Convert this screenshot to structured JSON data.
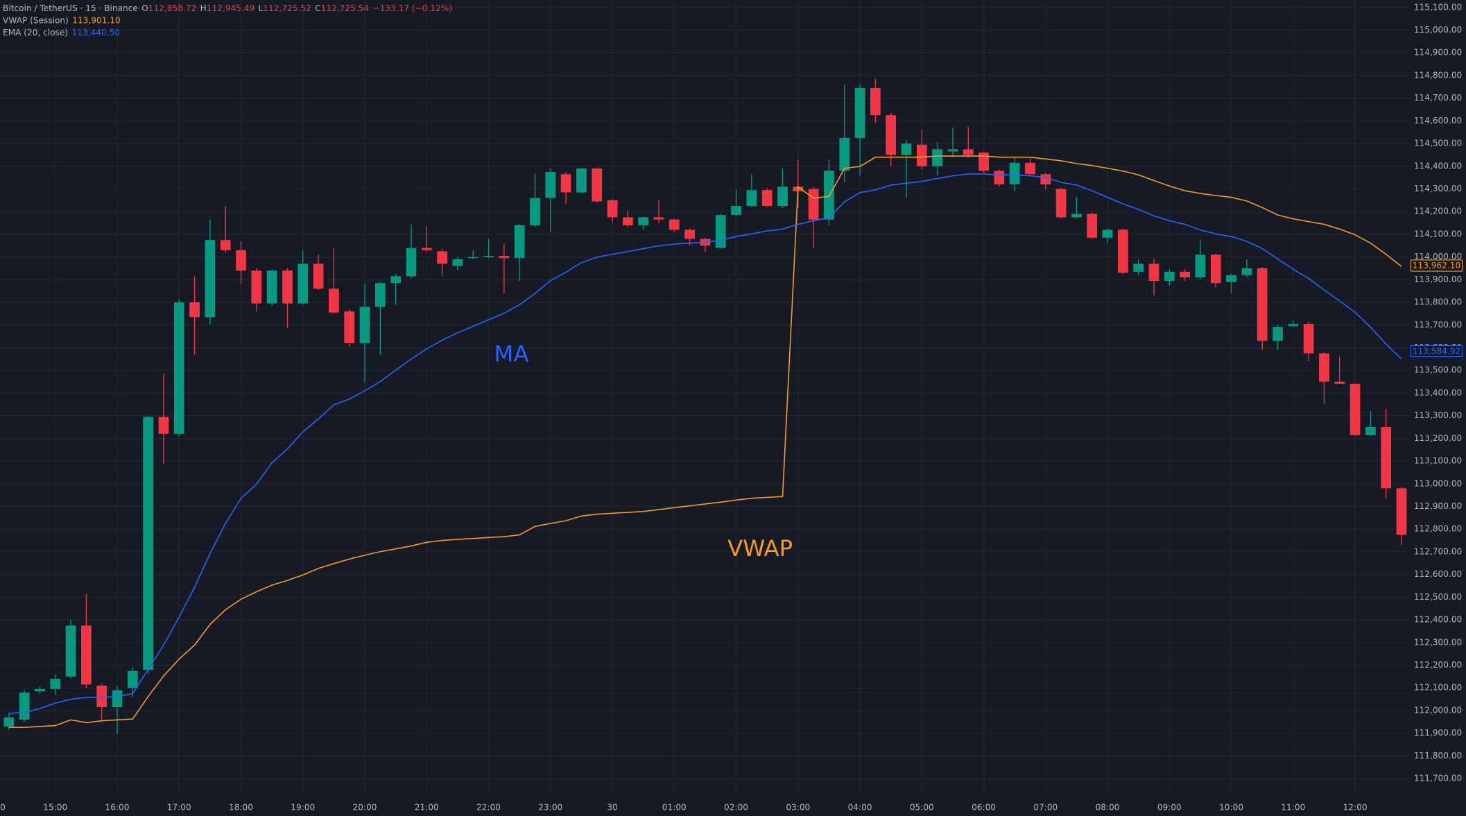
{
  "chart_data": {
    "type": "candlestick",
    "header": {
      "title": "Bitcoin / TetherUS · 15 · Binance",
      "ohlc": [
        {
          "label": "O",
          "value": "112,858.72"
        },
        {
          "label": "H",
          "value": "112,945.49"
        },
        {
          "label": "L",
          "value": "112,725.52"
        },
        {
          "label": "C",
          "value": "112,725.54"
        }
      ],
      "change": "−133.17 (−0.12%)"
    },
    "categories": [
      "0",
      null,
      null,
      null,
      "15:00",
      null,
      null,
      null,
      "16:00",
      null,
      null,
      null,
      "17:00",
      null,
      null,
      null,
      "18:00",
      null,
      null,
      null,
      "19:00",
      null,
      null,
      null,
      "20:00",
      null,
      null,
      null,
      "21:00",
      null,
      null,
      null,
      "22:00",
      null,
      null,
      null,
      "23:00",
      null,
      null,
      null,
      "30",
      null,
      null,
      null,
      "01:00",
      null,
      null,
      null,
      "02:00",
      null,
      null,
      null,
      "03:00",
      null,
      null,
      null,
      "04:00",
      null,
      null,
      null,
      "05:00",
      null,
      null,
      null,
      "06:00",
      null,
      null,
      null,
      "07:00",
      null,
      null,
      null,
      "08:00",
      null,
      null,
      null,
      "09:00",
      null,
      null,
      null,
      "10:00",
      null,
      null,
      null,
      "11:00",
      null,
      null,
      null,
      "12:00",
      null,
      null,
      null
    ],
    "open": [
      null,
      111930,
      111960,
      112085,
      112095,
      112150,
      112375,
      112110,
      112015,
      112100,
      112180,
      113295,
      113220,
      113800,
      113735,
      114075,
      114030,
      113940,
      113795,
      113940,
      113795,
      113970,
      113860,
      113760,
      113620,
      113780,
      113885,
      113915,
      114040,
      114025,
      113960,
      113995,
      114000,
      114005,
      113995,
      114140,
      114260,
      114365,
      114285,
      114390,
      114250,
      114175,
      114140,
      114175,
      114165,
      114120,
      114080,
      114040,
      114185,
      114225,
      114295,
      114225,
      114310,
      114300,
      114165,
      114380,
      114525,
      114745,
      114625,
      114450,
      114495,
      114400,
      114465,
      114475,
      114460,
      114380,
      114320,
      114415,
      114365,
      114300,
      114175,
      114190,
      114085,
      114120,
      113935,
      113970,
      113895,
      113935,
      113910,
      114010,
      113890,
      113920,
      113950,
      113630,
      113695,
      113705,
      113575,
      113450,
      113440,
      113215,
      113250,
      112980
    ],
    "high": [
      null,
      111990,
      112090,
      112105,
      112160,
      112400,
      112515,
      112120,
      112110,
      112190,
      113300,
      113485,
      113815,
      113915,
      114165,
      114225,
      114070,
      113950,
      113945,
      113950,
      114030,
      114010,
      114040,
      113770,
      113880,
      113890,
      113925,
      114145,
      114135,
      114035,
      114000,
      114030,
      114080,
      114060,
      114145,
      114370,
      114390,
      114375,
      114395,
      114395,
      114255,
      114205,
      114180,
      114250,
      114170,
      114125,
      114085,
      114190,
      114300,
      114365,
      114305,
      114390,
      114430,
      114310,
      114430,
      114760,
      114760,
      114785,
      114635,
      114515,
      114560,
      114505,
      114570,
      114575,
      114465,
      114385,
      114440,
      114440,
      114370,
      114305,
      114265,
      114195,
      114125,
      114125,
      113990,
      113990,
      113945,
      113945,
      114075,
      114015,
      113925,
      113990,
      113955,
      113700,
      113720,
      113715,
      113580,
      113560,
      113445,
      113320,
      113330,
      112985
    ],
    "low": [
      null,
      111915,
      111950,
      112075,
      112070,
      112140,
      112100,
      111960,
      111895,
      112060,
      112160,
      113085,
      113210,
      113570,
      113700,
      114020,
      113880,
      113760,
      113785,
      113685,
      113790,
      113855,
      113750,
      113605,
      113445,
      113570,
      113790,
      113905,
      114025,
      113915,
      113940,
      113990,
      113995,
      113840,
      113895,
      114130,
      114110,
      114235,
      114280,
      114240,
      114150,
      114130,
      114120,
      114150,
      114110,
      114050,
      114020,
      114035,
      114180,
      114220,
      114220,
      114215,
      114215,
      114040,
      114140,
      114330,
      114360,
      114590,
      114400,
      114260,
      114385,
      114360,
      114440,
      114440,
      114370,
      114310,
      114290,
      114355,
      114300,
      114170,
      114170,
      114080,
      114060,
      113925,
      113920,
      113830,
      113875,
      113895,
      113900,
      113865,
      113840,
      113910,
      113590,
      113590,
      113690,
      113540,
      113350,
      113440,
      113210,
      113210,
      112935,
      112730
    ],
    "close": [
      null,
      111970,
      112080,
      112095,
      112140,
      112375,
      112115,
      112015,
      112090,
      112175,
      113295,
      113220,
      113800,
      113735,
      114075,
      114030,
      113940,
      113795,
      113940,
      113795,
      113970,
      113860,
      113755,
      113620,
      113780,
      113885,
      113915,
      114040,
      114030,
      113970,
      113990,
      114000,
      114005,
      113995,
      114140,
      114260,
      114375,
      114285,
      114390,
      114245,
      114175,
      114140,
      114175,
      114165,
      114120,
      114080,
      114050,
      114185,
      114225,
      114295,
      114225,
      114310,
      114290,
      114165,
      114380,
      114525,
      114745,
      114625,
      114450,
      114500,
      114400,
      114475,
      114475,
      114450,
      114380,
      114320,
      114415,
      114365,
      114320,
      114175,
      114190,
      114085,
      114120,
      113930,
      113970,
      113895,
      113935,
      113910,
      114010,
      113885,
      113920,
      113950,
      113630,
      113690,
      113705,
      113575,
      113450,
      113440,
      113215,
      113250,
      112980,
      112775
    ],
    "up_color": "#089981",
    "down_color": "#f23645",
    "lines": [
      {
        "name": "VWAP (Session)",
        "legend_value": "113,901.10",
        "color": "#f59a23",
        "values": [
          null,
          111926,
          111926,
          111930,
          111934,
          111959,
          111947,
          111955,
          111959,
          111963,
          112062,
          112153,
          112227,
          112289,
          112380,
          112445,
          112491,
          112524,
          112553,
          112574,
          112598,
          112627,
          112648,
          112668,
          112685,
          112701,
          112713,
          112726,
          112742,
          112750,
          112755,
          112759,
          112763,
          112767,
          112775,
          112812,
          112825,
          112837,
          112858,
          112866,
          112870,
          112874,
          112878,
          112886,
          112895,
          112903,
          112911,
          112919,
          112928,
          112936,
          112940,
          112944,
          114309,
          114259,
          114267,
          114391,
          114399,
          114440,
          114440,
          114440,
          114440,
          114445,
          114445,
          114445,
          114445,
          114440,
          114440,
          114440,
          114432,
          114424,
          114412,
          114403,
          114391,
          114379,
          114362,
          114337,
          114313,
          114292,
          114280,
          114271,
          114263,
          114247,
          114218,
          114185,
          114168,
          114156,
          114144,
          114123,
          114098,
          114061,
          114012,
          113958
        ],
        "price_label": {
          "value": 113962.1,
          "label": "113,962.10"
        }
      },
      {
        "name": "EMA (20, close)",
        "legend_value": "113,440.50",
        "color": "#2962ff",
        "values": [
          null,
          111988,
          111992,
          112009,
          112033,
          112050,
          112058,
          112058,
          112062,
          112075,
          112182,
          112289,
          112412,
          112544,
          112693,
          112825,
          112936,
          112998,
          113093,
          113154,
          113229,
          113286,
          113348,
          113373,
          113410,
          113451,
          113501,
          113550,
          113595,
          113633,
          113666,
          113694,
          113723,
          113752,
          113789,
          113839,
          113896,
          113933,
          113975,
          113999,
          114012,
          114024,
          114037,
          114049,
          114057,
          114061,
          114065,
          114074,
          114090,
          114102,
          114115,
          114123,
          114144,
          114160,
          114173,
          114243,
          114284,
          114296,
          114317,
          114325,
          114333,
          114346,
          114358,
          114366,
          114366,
          114362,
          114362,
          114358,
          114350,
          114329,
          114317,
          114292,
          114263,
          114234,
          114210,
          114181,
          114160,
          114144,
          114119,
          114102,
          114090,
          114069,
          114037,
          113991,
          113946,
          113905,
          113855,
          113806,
          113756,
          113690,
          113616,
          113550
        ],
        "price_label": {
          "value": 113584.92,
          "label": "113,584.92"
        }
      }
    ],
    "annotations": [
      {
        "text": "MA",
        "color": "#2962ff"
      },
      {
        "text": "VWAP",
        "color": "#f59a23"
      }
    ],
    "ylim": [
      111630,
      115133
    ],
    "yticks": [
      {
        "value": 111700,
        "label": "111,700.00"
      },
      {
        "value": 111800,
        "label": "111,800.00"
      },
      {
        "value": 111900,
        "label": "111,900.00"
      },
      {
        "value": 112000,
        "label": "112,000.00"
      },
      {
        "value": 112100,
        "label": "112,100.00"
      },
      {
        "value": 112200,
        "label": "112,200.00"
      },
      {
        "value": 112300,
        "label": "112,300.00"
      },
      {
        "value": 112400,
        "label": "112,400.00"
      },
      {
        "value": 112500,
        "label": "112,500.00"
      },
      {
        "value": 112600,
        "label": "112,600.00"
      },
      {
        "value": 112700,
        "label": "112,700.00"
      },
      {
        "value": 112800,
        "label": "112,800.00"
      },
      {
        "value": 112900,
        "label": "112,900.00"
      },
      {
        "value": 113000,
        "label": "113,000.00"
      },
      {
        "value": 113100,
        "label": "113,100.00"
      },
      {
        "value": 113200,
        "label": "113,200.00"
      },
      {
        "value": 113300,
        "label": "113,300.00"
      },
      {
        "value": 113400,
        "label": "113,400.00"
      },
      {
        "value": 113500,
        "label": "113,500.00"
      },
      {
        "value": 113600,
        "label": "113,600.00"
      },
      {
        "value": 113700,
        "label": "113,700.00"
      },
      {
        "value": 113800,
        "label": "113,800.00"
      },
      {
        "value": 113900,
        "label": "113,900.00"
      },
      {
        "value": 114000,
        "label": "114,000.00"
      },
      {
        "value": 114100,
        "label": "114,100.00"
      },
      {
        "value": 114200,
        "label": "114,200.00"
      },
      {
        "value": 114300,
        "label": "114,300.00"
      },
      {
        "value": 114400,
        "label": "114,400.00"
      },
      {
        "value": 114500,
        "label": "114,500.00"
      },
      {
        "value": 114600,
        "label": "114,600.00"
      },
      {
        "value": 114700,
        "label": "114,700.00"
      },
      {
        "value": 114800,
        "label": "114,800.00"
      },
      {
        "value": 114900,
        "label": "114,900.00"
      },
      {
        "value": 115000,
        "label": "115,000.00"
      },
      {
        "value": 115100,
        "label": "115,100.00"
      }
    ],
    "grid": true
  }
}
